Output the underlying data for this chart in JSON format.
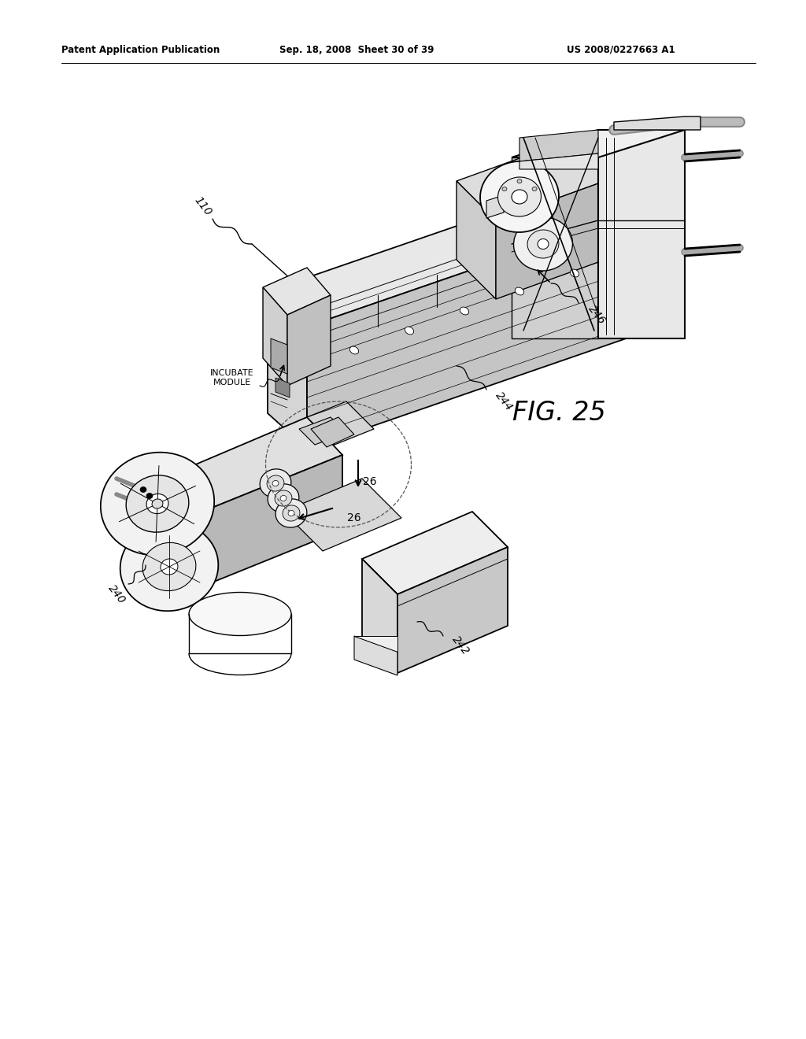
{
  "background_color": "#ffffff",
  "page_width": 10.24,
  "page_height": 13.2,
  "header_text": "Patent Application Publication",
  "header_date": "Sep. 18, 2008  Sheet 30 of 39",
  "header_patent": "US 2008/0227663 A1",
  "fig_label": "FIG. 25",
  "line_color": "#000000",
  "line_width": 1.0,
  "label_fontsize": 9,
  "fig_fontsize": 22
}
